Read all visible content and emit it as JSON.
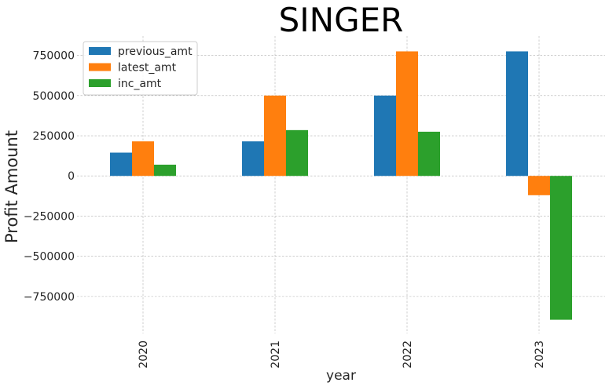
{
  "chart_data": {
    "type": "bar",
    "title": "SINGER",
    "xlabel": "year",
    "ylabel": "Profit Amount",
    "categories": [
      "2020",
      "2021",
      "2022",
      "2023"
    ],
    "series": [
      {
        "name": "previous_amt",
        "color": "#1f77b4",
        "values": [
          145000,
          215000,
          500000,
          775000
        ]
      },
      {
        "name": "latest_amt",
        "color": "#ff7f0e",
        "values": [
          215000,
          500000,
          775000,
          -120000
        ]
      },
      {
        "name": "inc_amt",
        "color": "#2ca02c",
        "values": [
          70000,
          285000,
          275000,
          -895000
        ]
      }
    ],
    "ylim": [
      -980000,
      870000
    ],
    "yticks": [
      -750000,
      -500000,
      -250000,
      0,
      250000,
      500000,
      750000
    ],
    "ytick_labels": [
      "−750000",
      "−500000",
      "−250000",
      "0",
      "250000",
      "500000",
      "750000"
    ],
    "grid": true,
    "legend_position": "upper-left"
  }
}
